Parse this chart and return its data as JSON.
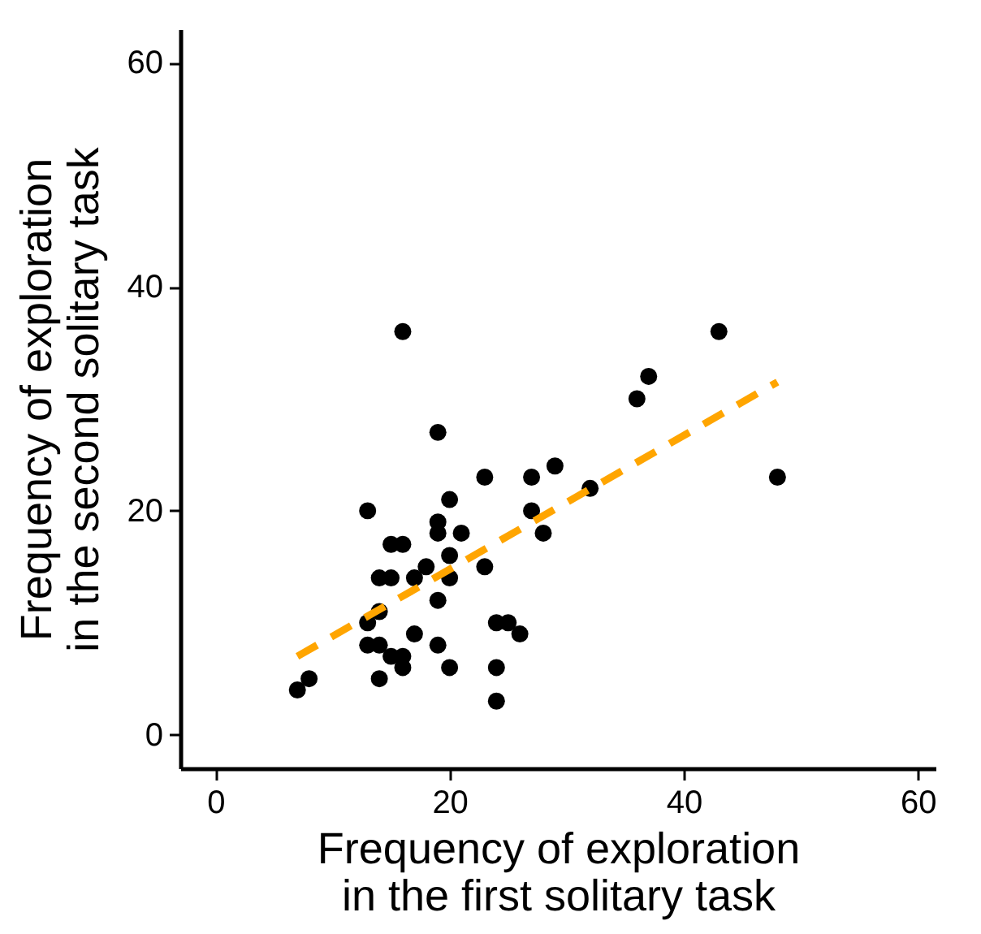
{
  "chart_data": {
    "type": "scatter",
    "xlabel": "Frequency of exploration\nin the first solitary task",
    "ylabel": "Frequency of exploration\nin the second solitary task",
    "xlim": [
      -3,
      61.5
    ],
    "ylim": [
      -3,
      63
    ],
    "xticks": [
      0,
      20,
      40,
      60
    ],
    "yticks": [
      0,
      20,
      40,
      60
    ],
    "grid": false,
    "series": [
      {
        "marker": "circle",
        "color": "#000000",
        "x": [
          7,
          8,
          13,
          13,
          13,
          14,
          14,
          14,
          14,
          15,
          15,
          15,
          16,
          16,
          16,
          16,
          17,
          17,
          18,
          19,
          19,
          19,
          19,
          19,
          20,
          20,
          20,
          20,
          21,
          23,
          23,
          24,
          24,
          24,
          25,
          26,
          27,
          27,
          28,
          29,
          32,
          36,
          37,
          43,
          48
        ],
        "values": [
          4,
          5,
          20,
          10,
          8,
          14,
          11,
          8,
          5,
          17,
          14,
          7,
          36,
          17,
          7,
          6,
          14,
          9,
          15,
          27,
          19,
          18,
          12,
          8,
          21,
          16,
          14,
          6,
          18,
          23,
          15,
          10,
          6,
          3,
          10,
          9,
          23,
          20,
          18,
          24,
          22,
          30,
          32,
          36,
          23
        ]
      },
      {
        "type": "line",
        "color": "#ffa500",
        "line_style": "dashed",
        "x": [
          7,
          48
        ],
        "values": [
          7,
          31.5
        ]
      }
    ]
  }
}
